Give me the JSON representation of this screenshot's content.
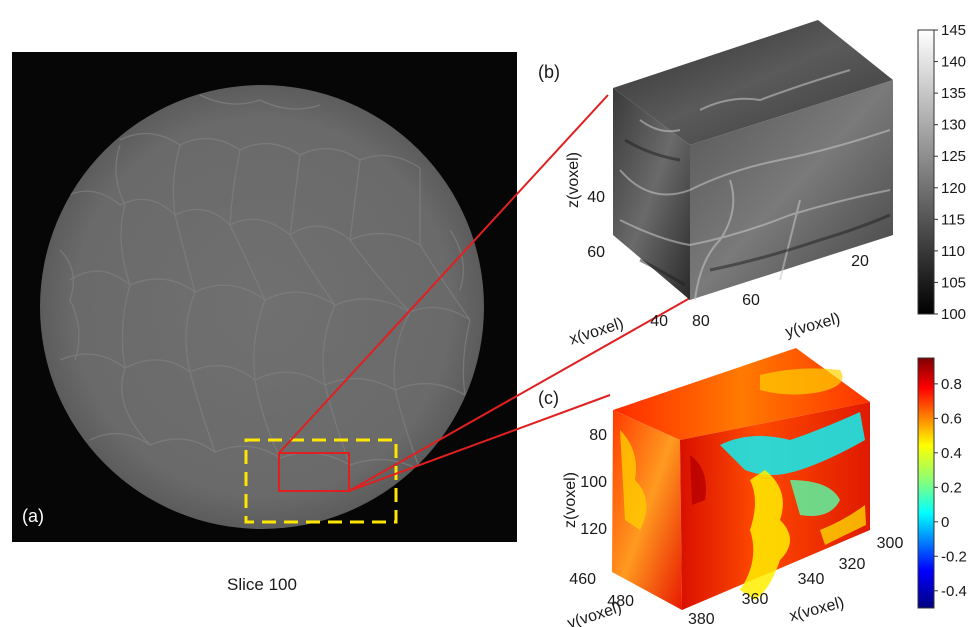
{
  "panel_a": {
    "label": "(a)",
    "caption": "Slice 100"
  },
  "panel_b": {
    "label": "(b)",
    "z_axis_label": "z(voxel)",
    "z_ticks": [
      "40",
      "60"
    ],
    "x_axis_label": "x(voxel)",
    "x_ticks": [
      "40",
      "80"
    ],
    "y_axis_label": "y(voxel)",
    "y_ticks": [
      "60",
      "20"
    ],
    "colorbar": {
      "ticks": [
        "145",
        "140",
        "135",
        "130",
        "125",
        "120",
        "115",
        "110",
        "105",
        "100"
      ],
      "min": 100,
      "max": 145
    }
  },
  "panel_c": {
    "label": "(c)",
    "z_axis_label": "z(voxel)",
    "z_ticks": [
      "80",
      "100",
      "120"
    ],
    "y_axis_label": "y(voxel)",
    "y_ticks": [
      "460",
      "480"
    ],
    "x_axis_label": "x(voxel)",
    "x_ticks": [
      "380",
      "360",
      "340",
      "320",
      "300"
    ],
    "colorbar": {
      "ticks": [
        "0.8",
        "0.6",
        "0.4",
        "0.2",
        "0",
        "-0.2",
        "-0.4"
      ],
      "min": -0.5,
      "max": 0.95
    }
  },
  "colors": {
    "zoom_box": "#ffe600",
    "roi_box": "#e02020",
    "leader_lines": "#e02020",
    "ct_background": "#060606",
    "ct_disc": "#6d6d6d"
  }
}
